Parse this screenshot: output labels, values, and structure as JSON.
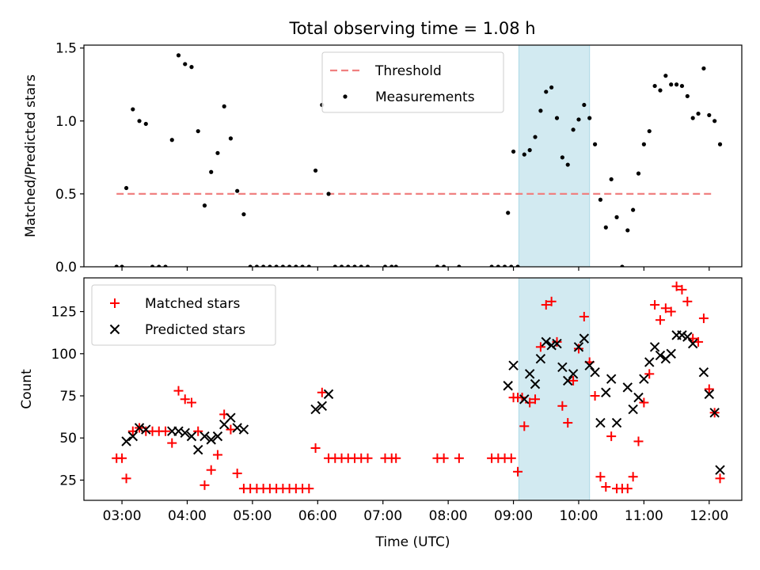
{
  "figure": {
    "title": "Total observing time = 1.08 h"
  },
  "chart_data": [
    {
      "type": "scatter",
      "panel": "top",
      "ylabel": "Matched/Predicted stars",
      "xlabel": "",
      "xlim": [
        "02:25",
        "12:30"
      ],
      "ylim": [
        0,
        1.52
      ],
      "yticks": [
        "0.0",
        "0.5",
        "1.0",
        "1.5"
      ],
      "grid": false,
      "legend_placement": "upper center",
      "highlight_span": {
        "start": "09:05",
        "end": "10:10",
        "color": "#add8e6"
      },
      "series": [
        {
          "name": "Threshold",
          "kind": "dashed-line",
          "color": "#f08080",
          "x": [
            "02:55",
            "12:05"
          ],
          "y": [
            0.5,
            0.5
          ]
        },
        {
          "name": "Measurements",
          "kind": "point",
          "color": "#000000",
          "points": [
            [
              "02:55",
              0
            ],
            [
              "03:00",
              0
            ],
            [
              "03:04",
              0.54
            ],
            [
              "03:10",
              1.08
            ],
            [
              "03:16",
              1.0
            ],
            [
              "03:22",
              0.98
            ],
            [
              "03:28",
              0
            ],
            [
              "03:34",
              0
            ],
            [
              "03:40",
              0
            ],
            [
              "03:46",
              0.87
            ],
            [
              "03:52",
              1.45
            ],
            [
              "03:58",
              1.39
            ],
            [
              "04:04",
              1.37
            ],
            [
              "04:10",
              0.93
            ],
            [
              "04:16",
              0.42
            ],
            [
              "04:22",
              0.65
            ],
            [
              "04:28",
              0.78
            ],
            [
              "04:34",
              1.1
            ],
            [
              "04:40",
              0.88
            ],
            [
              "04:46",
              0.52
            ],
            [
              "04:52",
              0.36
            ],
            [
              "04:58",
              0
            ],
            [
              "05:04",
              0
            ],
            [
              "05:10",
              0
            ],
            [
              "05:16",
              0
            ],
            [
              "05:22",
              0
            ],
            [
              "05:28",
              0
            ],
            [
              "05:34",
              0
            ],
            [
              "05:40",
              0
            ],
            [
              "05:46",
              0
            ],
            [
              "05:52",
              0
            ],
            [
              "05:58",
              0.66
            ],
            [
              "06:04",
              1.11
            ],
            [
              "06:10",
              0.5
            ],
            [
              "06:16",
              0
            ],
            [
              "06:22",
              0
            ],
            [
              "06:28",
              0
            ],
            [
              "06:34",
              0
            ],
            [
              "06:40",
              0
            ],
            [
              "06:46",
              0
            ],
            [
              "07:02",
              0
            ],
            [
              "07:08",
              0
            ],
            [
              "07:12",
              0
            ],
            [
              "07:50",
              0
            ],
            [
              "07:56",
              0
            ],
            [
              "08:10",
              0
            ],
            [
              "08:40",
              0
            ],
            [
              "08:46",
              0
            ],
            [
              "08:52",
              0
            ],
            [
              "08:58",
              0
            ],
            [
              "09:04",
              0
            ],
            [
              "08:55",
              0.37
            ],
            [
              "09:00",
              0.79
            ],
            [
              "09:10",
              0.77
            ],
            [
              "09:15",
              0.8
            ],
            [
              "09:20",
              0.89
            ],
            [
              "09:25",
              1.07
            ],
            [
              "09:30",
              1.2
            ],
            [
              "09:35",
              1.23
            ],
            [
              "09:40",
              1.02
            ],
            [
              "09:45",
              0.75
            ],
            [
              "09:50",
              0.7
            ],
            [
              "09:55",
              0.94
            ],
            [
              "10:00",
              1.01
            ],
            [
              "10:05",
              1.11
            ],
            [
              "10:10",
              1.02
            ],
            [
              "10:15",
              0.84
            ],
            [
              "10:20",
              0.46
            ],
            [
              "10:25",
              0.27
            ],
            [
              "10:30",
              0.6
            ],
            [
              "10:35",
              0.34
            ],
            [
              "10:40",
              0.0
            ],
            [
              "10:45",
              0.25
            ],
            [
              "10:50",
              0.39
            ],
            [
              "10:55",
              0.64
            ],
            [
              "11:00",
              0.84
            ],
            [
              "11:05",
              0.93
            ],
            [
              "11:10",
              1.24
            ],
            [
              "11:15",
              1.21
            ],
            [
              "11:20",
              1.31
            ],
            [
              "11:25",
              1.25
            ],
            [
              "11:30",
              1.25
            ],
            [
              "11:35",
              1.24
            ],
            [
              "11:40",
              1.17
            ],
            [
              "11:45",
              1.02
            ],
            [
              "11:50",
              1.05
            ],
            [
              "11:55",
              1.36
            ],
            [
              "12:00",
              1.04
            ],
            [
              "12:05",
              1.0
            ],
            [
              "12:10",
              0.84
            ]
          ]
        }
      ]
    },
    {
      "type": "scatter",
      "panel": "bottom",
      "ylabel": "Count",
      "xlabel": "Time (UTC)",
      "xlim": [
        "02:25",
        "12:30"
      ],
      "ylim": [
        13,
        145
      ],
      "yticks": [
        "25",
        "50",
        "75",
        "100",
        "125"
      ],
      "xticks": [
        "03:00",
        "04:00",
        "05:00",
        "06:00",
        "07:00",
        "08:00",
        "09:00",
        "10:00",
        "11:00",
        "12:00"
      ],
      "grid": false,
      "legend_placement": "upper left",
      "highlight_span": {
        "start": "09:05",
        "end": "10:10",
        "color": "#add8e6"
      },
      "series": [
        {
          "name": "Matched stars",
          "kind": "plus",
          "color": "#ff0000",
          "points": [
            [
              "02:55",
              38
            ],
            [
              "03:00",
              38
            ],
            [
              "03:04",
              26
            ],
            [
              "03:10",
              54
            ],
            [
              "03:16",
              56
            ],
            [
              "03:22",
              54
            ],
            [
              "03:28",
              54
            ],
            [
              "03:34",
              54
            ],
            [
              "03:40",
              54
            ],
            [
              "03:46",
              47
            ],
            [
              "03:52",
              78
            ],
            [
              "03:58",
              73
            ],
            [
              "04:04",
              71
            ],
            [
              "04:10",
              54
            ],
            [
              "04:16",
              22
            ],
            [
              "04:22",
              31
            ],
            [
              "04:28",
              40
            ],
            [
              "04:34",
              64
            ],
            [
              "04:40",
              55
            ],
            [
              "04:46",
              29
            ],
            [
              "04:52",
              20
            ],
            [
              "04:58",
              20
            ],
            [
              "05:04",
              20
            ],
            [
              "05:10",
              20
            ],
            [
              "05:16",
              20
            ],
            [
              "05:22",
              20
            ],
            [
              "05:28",
              20
            ],
            [
              "05:34",
              20
            ],
            [
              "05:40",
              20
            ],
            [
              "05:46",
              20
            ],
            [
              "05:52",
              20
            ],
            [
              "05:58",
              44
            ],
            [
              "06:04",
              77
            ],
            [
              "06:10",
              38
            ],
            [
              "06:16",
              38
            ],
            [
              "06:22",
              38
            ],
            [
              "06:28",
              38
            ],
            [
              "06:34",
              38
            ],
            [
              "06:40",
              38
            ],
            [
              "06:46",
              38
            ],
            [
              "07:02",
              38
            ],
            [
              "07:08",
              38
            ],
            [
              "07:12",
              38
            ],
            [
              "07:50",
              38
            ],
            [
              "07:56",
              38
            ],
            [
              "08:10",
              38
            ],
            [
              "08:40",
              38
            ],
            [
              "08:46",
              38
            ],
            [
              "08:52",
              38
            ],
            [
              "08:58",
              38
            ],
            [
              "09:04",
              30
            ],
            [
              "09:00",
              74
            ],
            [
              "09:04",
              74
            ],
            [
              "09:08",
              74
            ],
            [
              "09:10",
              57
            ],
            [
              "09:15",
              71
            ],
            [
              "09:20",
              73
            ],
            [
              "09:25",
              104
            ],
            [
              "09:30",
              129
            ],
            [
              "09:35",
              131
            ],
            [
              "09:40",
              107
            ],
            [
              "09:45",
              69
            ],
            [
              "09:50",
              59
            ],
            [
              "09:55",
              84
            ],
            [
              "10:00",
              103
            ],
            [
              "10:05",
              122
            ],
            [
              "10:10",
              95
            ],
            [
              "10:15",
              75
            ],
            [
              "10:20",
              27
            ],
            [
              "10:25",
              21
            ],
            [
              "10:30",
              51
            ],
            [
              "10:35",
              20
            ],
            [
              "10:40",
              20
            ],
            [
              "10:45",
              20
            ],
            [
              "10:50",
              27
            ],
            [
              "10:55",
              48
            ],
            [
              "11:00",
              71
            ],
            [
              "11:05",
              88
            ],
            [
              "11:10",
              129
            ],
            [
              "11:15",
              120
            ],
            [
              "11:20",
              127
            ],
            [
              "11:25",
              125
            ],
            [
              "11:30",
              140
            ],
            [
              "11:35",
              138
            ],
            [
              "11:40",
              131
            ],
            [
              "11:45",
              109
            ],
            [
              "11:50",
              107
            ],
            [
              "11:55",
              121
            ],
            [
              "12:00",
              79
            ],
            [
              "12:05",
              65
            ],
            [
              "12:10",
              26
            ]
          ]
        },
        {
          "name": "Predicted stars",
          "kind": "cross",
          "color": "#000000",
          "points": [
            [
              "03:04",
              48
            ],
            [
              "03:10",
              51
            ],
            [
              "03:16",
              56
            ],
            [
              "03:22",
              55
            ],
            [
              "03:46",
              54
            ],
            [
              "03:52",
              54
            ],
            [
              "03:58",
              53
            ],
            [
              "04:04",
              51
            ],
            [
              "04:10",
              43
            ],
            [
              "04:16",
              51
            ],
            [
              "04:22",
              49
            ],
            [
              "04:28",
              51
            ],
            [
              "04:34",
              58
            ],
            [
              "04:40",
              62
            ],
            [
              "04:46",
              56
            ],
            [
              "04:52",
              55
            ],
            [
              "05:58",
              67
            ],
            [
              "06:04",
              69
            ],
            [
              "06:10",
              76
            ],
            [
              "08:55",
              81
            ],
            [
              "09:00",
              93
            ],
            [
              "09:10",
              73
            ],
            [
              "09:15",
              88
            ],
            [
              "09:20",
              82
            ],
            [
              "09:25",
              97
            ],
            [
              "09:30",
              107
            ],
            [
              "09:35",
              105
            ],
            [
              "09:40",
              106
            ],
            [
              "09:45",
              92
            ],
            [
              "09:50",
              84
            ],
            [
              "09:55",
              88
            ],
            [
              "10:00",
              104
            ],
            [
              "10:05",
              109
            ],
            [
              "10:10",
              93
            ],
            [
              "10:15",
              89
            ],
            [
              "10:20",
              59
            ],
            [
              "10:25",
              77
            ],
            [
              "10:30",
              85
            ],
            [
              "10:35",
              59
            ],
            [
              "10:45",
              80
            ],
            [
              "10:50",
              67
            ],
            [
              "10:55",
              74
            ],
            [
              "11:00",
              85
            ],
            [
              "11:05",
              95
            ],
            [
              "11:10",
              104
            ],
            [
              "11:15",
              99
            ],
            [
              "11:20",
              97
            ],
            [
              "11:25",
              100
            ],
            [
              "11:30",
              111
            ],
            [
              "11:35",
              111
            ],
            [
              "11:40",
              110
            ],
            [
              "11:45",
              106
            ],
            [
              "11:55",
              89
            ],
            [
              "12:00",
              76
            ],
            [
              "12:05",
              65
            ],
            [
              "12:10",
              31
            ]
          ]
        }
      ]
    }
  ]
}
